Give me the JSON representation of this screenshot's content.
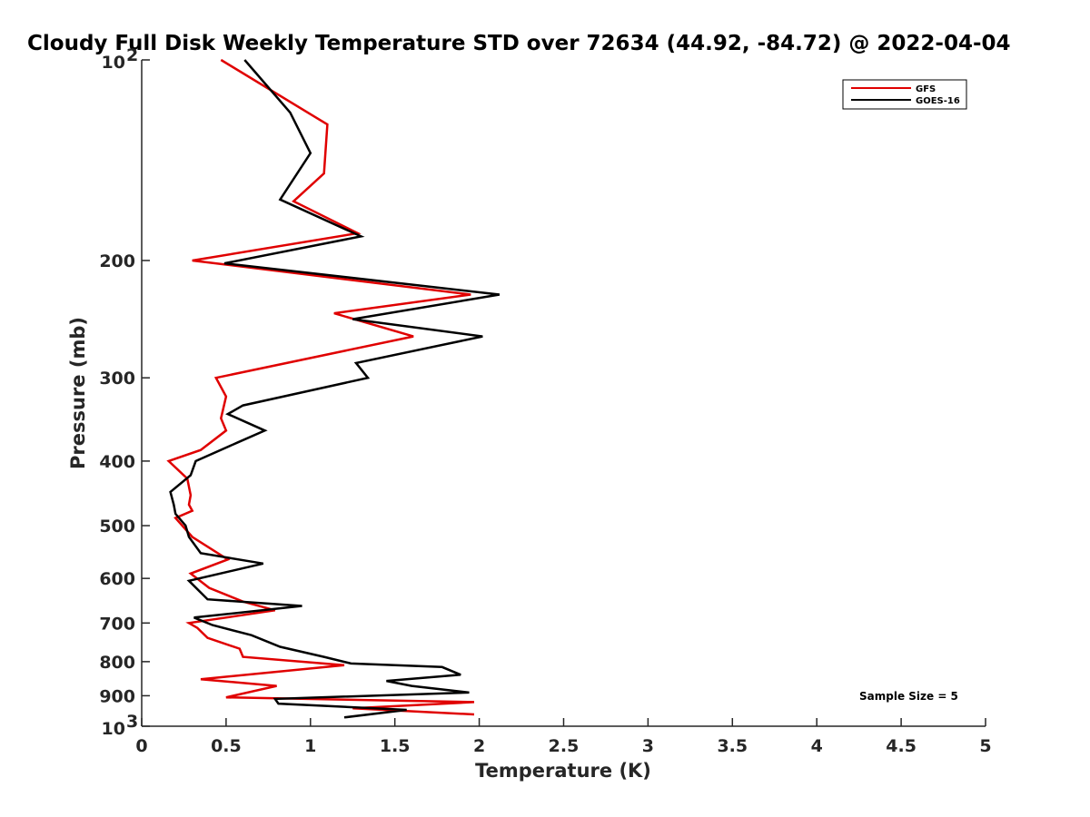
{
  "chart_data": {
    "type": "line",
    "title": "Cloudy Full Disk Weekly Temperature STD over 72634 (44.92, -84.72) @ 2022-04-04",
    "xlabel": "Temperature (K)",
    "ylabel": "Pressure (mb)",
    "xlim": [
      0,
      5
    ],
    "ylim": [
      100,
      1000
    ],
    "y_scale": "log",
    "y_reversed": true,
    "grid": false,
    "legend_position": "top-right",
    "x_ticks": [
      "0",
      "0.5",
      "1",
      "1.5",
      "2",
      "2.5",
      "3",
      "3.5",
      "4",
      "4.5",
      "5"
    ],
    "x_tick_values": [
      0,
      0.5,
      1,
      1.5,
      2,
      2.5,
      3,
      3.5,
      4,
      4.5,
      5
    ],
    "y_ticks": [
      "200",
      "300",
      "400",
      "500",
      "600",
      "700",
      "800",
      "900"
    ],
    "y_tick_values": [
      200,
      300,
      400,
      500,
      600,
      700,
      800,
      900
    ],
    "y_tick_min": {
      "base": "10",
      "exp": "2",
      "value": 100
    },
    "y_tick_max": {
      "base": "10",
      "exp": "3",
      "value": 1000
    },
    "series": [
      {
        "name": "GFS",
        "color": "#e00000",
        "points": [
          [
            0.47,
            100
          ],
          [
            1.1,
            125
          ],
          [
            1.08,
            148
          ],
          [
            0.9,
            163
          ],
          [
            1.28,
            182
          ],
          [
            0.3,
            200
          ],
          [
            1.95,
            225
          ],
          [
            1.14,
            240
          ],
          [
            1.61,
            260
          ],
          [
            0.44,
            300
          ],
          [
            0.5,
            320
          ],
          [
            0.47,
            345
          ],
          [
            0.5,
            360
          ],
          [
            0.35,
            385
          ],
          [
            0.16,
            400
          ],
          [
            0.27,
            425
          ],
          [
            0.29,
            450
          ],
          [
            0.28,
            465
          ],
          [
            0.3,
            475
          ],
          [
            0.2,
            487
          ],
          [
            0.3,
            520
          ],
          [
            0.51,
            562
          ],
          [
            0.29,
            590
          ],
          [
            0.4,
            620
          ],
          [
            0.6,
            650
          ],
          [
            0.79,
            670
          ],
          [
            0.28,
            700
          ],
          [
            0.33,
            712
          ],
          [
            0.39,
            737
          ],
          [
            0.58,
            765
          ],
          [
            0.6,
            787
          ],
          [
            1.2,
            810
          ],
          [
            0.35,
            850
          ],
          [
            0.8,
            870
          ],
          [
            0.5,
            905
          ],
          [
            1.97,
            920
          ],
          [
            1.25,
            940
          ],
          [
            1.97,
            960
          ]
        ]
      },
      {
        "name": "GOES-16",
        "color": "#000000",
        "points": [
          [
            0.61,
            100
          ],
          [
            0.88,
            120
          ],
          [
            1.0,
            138
          ],
          [
            0.82,
            162
          ],
          [
            1.3,
            184
          ],
          [
            0.49,
            202
          ],
          [
            2.12,
            225
          ],
          [
            1.25,
            245
          ],
          [
            2.02,
            260
          ],
          [
            1.27,
            285
          ],
          [
            1.34,
            300
          ],
          [
            0.6,
            330
          ],
          [
            0.51,
            340
          ],
          [
            0.73,
            360
          ],
          [
            0.57,
            375
          ],
          [
            0.32,
            400
          ],
          [
            0.29,
            420
          ],
          [
            0.17,
            445
          ],
          [
            0.19,
            465
          ],
          [
            0.2,
            480
          ],
          [
            0.26,
            500
          ],
          [
            0.28,
            520
          ],
          [
            0.35,
            550
          ],
          [
            0.72,
            570
          ],
          [
            0.28,
            605
          ],
          [
            0.35,
            630
          ],
          [
            0.39,
            645
          ],
          [
            0.95,
            660
          ],
          [
            0.31,
            687
          ],
          [
            0.42,
            705
          ],
          [
            0.65,
            730
          ],
          [
            0.82,
            760
          ],
          [
            1.08,
            787
          ],
          [
            1.24,
            805
          ],
          [
            1.78,
            815
          ],
          [
            1.89,
            837
          ],
          [
            1.45,
            855
          ],
          [
            1.6,
            870
          ],
          [
            1.94,
            890
          ],
          [
            0.79,
            910
          ],
          [
            0.81,
            925
          ],
          [
            1.57,
            945
          ],
          [
            1.2,
            970
          ]
        ]
      }
    ],
    "annotation": "Sample Size = 5"
  }
}
